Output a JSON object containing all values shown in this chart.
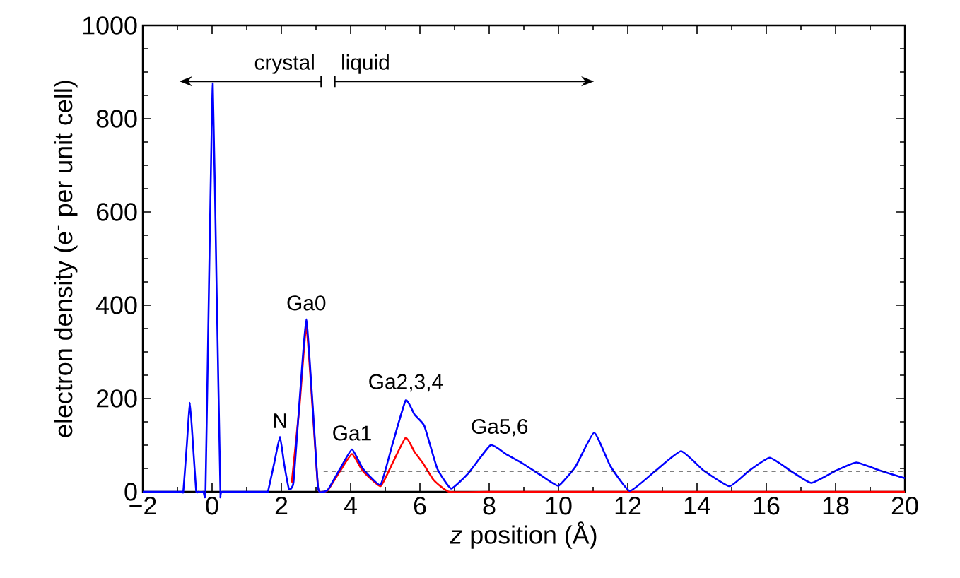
{
  "chart_data": {
    "type": "line",
    "xlabel": "*z* position (Å)",
    "ylabel": "electron density (e$^{-}$ per unit cell)",
    "xlim": [
      -2,
      20
    ],
    "ylim": [
      0,
      1000
    ],
    "xticks": [
      {
        "value": -2,
        "label": "−2"
      },
      0,
      2,
      4,
      6,
      8,
      10,
      12,
      14,
      16,
      18,
      20
    ],
    "yticks": [
      0,
      200,
      400,
      600,
      800,
      1000
    ],
    "series": [
      {
        "color": "#ff0000",
        "x": [
          2.3,
          2.52,
          2.72,
          2.9,
          3.06,
          3.2,
          3.35,
          3.7,
          4.04,
          4.35,
          4.86,
          5.2,
          5.59,
          5.85,
          6.1,
          6.4,
          6.84,
          8,
          10,
          12,
          14,
          16,
          18,
          20
        ],
        "values": [
          20,
          180,
          355,
          180,
          8,
          0,
          4,
          45,
          81,
          45,
          12,
          60,
          116,
          85,
          60,
          25,
          0,
          0,
          0,
          0,
          0,
          0,
          0,
          0
        ]
      },
      {
        "color": "#0000ff",
        "x": [
          -2,
          -0.9,
          -0.83,
          -0.73,
          -0.64,
          -0.55,
          -0.46,
          -0.4,
          -0.25,
          -0.19,
          -0.09,
          0.02,
          0.13,
          0.24,
          0.3,
          1.55,
          1.62,
          1.79,
          1.96,
          2.08,
          2.22,
          2.35,
          2.52,
          2.72,
          2.9,
          3.06,
          3.2,
          3.35,
          3.7,
          4.04,
          4.35,
          4.86,
          5.2,
          5.59,
          5.85,
          6.13,
          6.5,
          6.9,
          7.4,
          8.04,
          8.5,
          8.96,
          9.5,
          10.0,
          10.5,
          11.03,
          11.5,
          12.06,
          12.8,
          13.54,
          14.2,
          14.94,
          15.5,
          16.1,
          16.7,
          17.3,
          18.0,
          18.6,
          19.3,
          20
        ],
        "values": [
          0,
          0,
          2,
          100,
          191,
          100,
          2,
          0,
          0,
          2,
          440,
          876,
          440,
          2,
          0,
          0,
          3,
          60,
          118,
          60,
          6,
          20,
          190,
          370,
          190,
          8,
          0,
          5,
          50,
          91,
          50,
          15,
          100,
          196,
          165,
          141,
          50,
          7,
          40,
          100,
          80,
          61,
          35,
          13,
          55,
          127,
          55,
          2,
          45,
          87,
          45,
          12,
          45,
          73,
          45,
          19,
          45,
          63,
          45,
          29
        ]
      },
      {
        "color": "#000000",
        "line_style": "dashed",
        "x": [
          3.22,
          20
        ],
        "values": [
          44,
          44
        ]
      }
    ],
    "annotations": [
      "crystal",
      "liquid",
      {
        "text": "N",
        "x": 1.96,
        "y": 118
      },
      {
        "text": "Ga0",
        "x": 2.72,
        "y": 370
      },
      {
        "text": "Ga1",
        "x": 4.04,
        "y": 91
      },
      {
        "text": "Ga2,3,4",
        "x": 5.59,
        "y": 196
      },
      {
        "text": "Ga5,6",
        "x": 8.3,
        "y": 100
      }
    ]
  }
}
